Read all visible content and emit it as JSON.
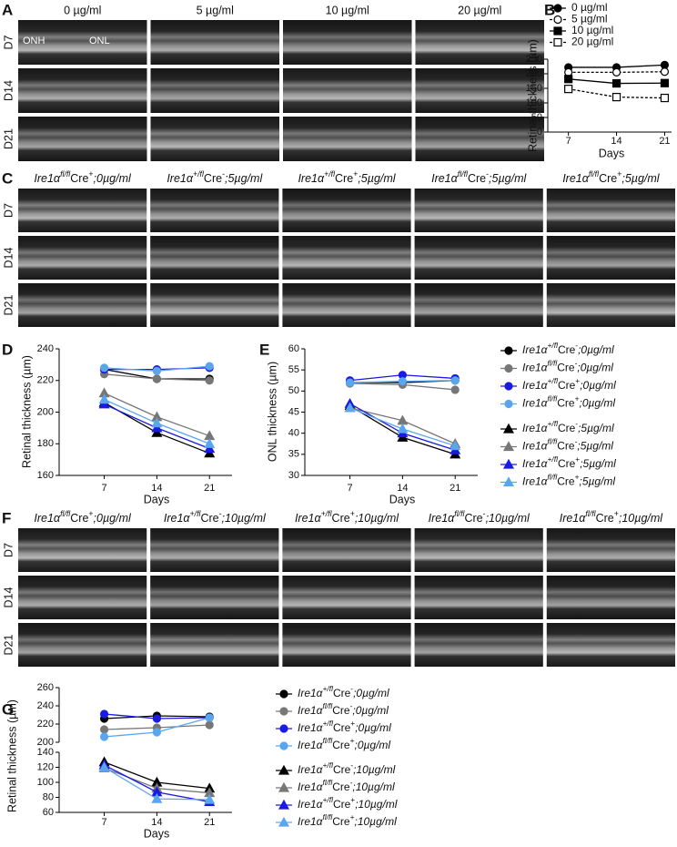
{
  "image_panels": [
    {
      "letter": "A",
      "columns": [
        "0 µg/ml",
        "5 µg/ml",
        "10 µg/ml",
        "20 µg/ml"
      ],
      "rows": [
        "D7",
        "D14",
        "D21"
      ],
      "annotations": [
        "ONH",
        "ONL"
      ]
    },
    {
      "letter": "C",
      "columns": [
        "Ire1αfl/flCre+;0µg/ml",
        "Ire1α+/flCre-;5µg/ml",
        "Ire1α+/flCre+;5µg/ml",
        "Ire1αfl/flCre-;5µg/ml",
        "Ire1αfl/flCre+;5µg/ml"
      ],
      "rows": [
        "D7",
        "D14",
        "D21"
      ]
    },
    {
      "letter": "F",
      "columns": [
        "Ire1αfl/flCre+;0µg/ml",
        "Ire1α+/flCre-;10µg/ml",
        "Ire1α+/flCre+;10µg/ml",
        "Ire1αfl/flCre-;10µg/ml",
        "Ire1αfl/flCre+;10µg/ml"
      ],
      "rows": [
        "D7",
        "D14",
        "D21"
      ]
    }
  ],
  "chart_data": [
    {
      "type": "line",
      "panel": "B",
      "ylabel": "Retinal thickness (µm)",
      "xlabel": "Days",
      "x": [
        7,
        14,
        21
      ],
      "xlim": [
        4,
        22
      ],
      "xticks": [
        7,
        14,
        21
      ],
      "ylim": [
        0,
        250
      ],
      "yticks": [
        0,
        50,
        100,
        150,
        200,
        250
      ],
      "series": [
        {
          "name": "0 µg/ml",
          "color": "#000000",
          "marker": "circle",
          "dash": false,
          "values": [
            222,
            222,
            230
          ]
        },
        {
          "name": "5 µg/ml",
          "color": "#000000",
          "marker": "circle-open",
          "dash": true,
          "values": [
            205,
            205,
            207
          ]
        },
        {
          "name": "10 µg/ml",
          "color": "#000000",
          "marker": "square",
          "dash": false,
          "values": [
            182,
            167,
            168
          ]
        },
        {
          "name": "20 µg/ml",
          "color": "#000000",
          "marker": "square-open",
          "dash": true,
          "values": [
            148,
            120,
            117
          ]
        }
      ]
    },
    {
      "type": "line",
      "panel": "D",
      "ylabel": "Retinal thickness (µm)",
      "xlabel": "Days",
      "x": [
        7,
        14,
        21
      ],
      "xlim": [
        1,
        24
      ],
      "xticks": [
        7,
        14,
        21
      ],
      "ylim": [
        160,
        240
      ],
      "yticks": [
        160,
        180,
        200,
        220,
        240
      ],
      "series": [
        {
          "color": "#000000",
          "marker": "circle",
          "values": [
            227,
            221,
            221
          ]
        },
        {
          "color": "#777777",
          "marker": "circle",
          "values": [
            224,
            221,
            220
          ]
        },
        {
          "color": "#1a1ae0",
          "marker": "circle",
          "values": [
            227,
            227,
            228
          ]
        },
        {
          "color": "#5aa6ee",
          "marker": "circle",
          "values": [
            228,
            226,
            229
          ]
        },
        {
          "color": "#000000",
          "marker": "triangle",
          "values": [
            206,
            187,
            174
          ]
        },
        {
          "color": "#777777",
          "marker": "triangle",
          "values": [
            212,
            197,
            185
          ]
        },
        {
          "color": "#1a1ae0",
          "marker": "triangle",
          "values": [
            205,
            190,
            177
          ]
        },
        {
          "color": "#5aa6ee",
          "marker": "triangle",
          "values": [
            208,
            193,
            180
          ]
        }
      ]
    },
    {
      "type": "line",
      "panel": "E",
      "ylabel": "ONL thickness (µm)",
      "xlabel": "Days",
      "x": [
        7,
        14,
        21
      ],
      "xlim": [
        1,
        24
      ],
      "xticks": [
        7,
        14,
        21
      ],
      "ylim": [
        30,
        60
      ],
      "yticks": [
        30,
        35,
        40,
        45,
        50,
        55,
        60
      ],
      "series": [
        {
          "name": "Ire1α+/flCre-;0µg/ml",
          "color": "#000000",
          "marker": "circle",
          "values": [
            52,
            52,
            52.5
          ]
        },
        {
          "name": "Ire1αfl/flCre-;0µg/ml",
          "color": "#777777",
          "marker": "circle",
          "values": [
            51.8,
            51.5,
            50.3
          ]
        },
        {
          "name": "Ire1α+/flCre+;0µg/ml",
          "color": "#1a1ae0",
          "marker": "circle",
          "values": [
            52.5,
            53.8,
            53
          ]
        },
        {
          "name": "Ire1αfl/flCre+;0µg/ml",
          "color": "#5aa6ee",
          "marker": "circle",
          "values": [
            52,
            52.3,
            52.5
          ]
        },
        {
          "name": "Ire1α+/flCre-;5µg/ml",
          "color": "#000000",
          "marker": "triangle",
          "values": [
            46.5,
            39,
            35
          ]
        },
        {
          "name": "Ire1αfl/flCre-;5µg/ml",
          "color": "#777777",
          "marker": "triangle",
          "values": [
            46,
            43,
            37.5
          ]
        },
        {
          "name": "Ire1α+/flCre+;5µg/ml",
          "color": "#1a1ae0",
          "marker": "triangle",
          "values": [
            47,
            40,
            36
          ]
        },
        {
          "name": "Ire1αfl/flCre+;5µg/ml",
          "color": "#5aa6ee",
          "marker": "triangle",
          "values": [
            46,
            41,
            37
          ]
        }
      ]
    },
    {
      "type": "line",
      "panel": "G",
      "ylabel": "Retinal thickness (µm)",
      "xlabel": "Days",
      "x": [
        7,
        14,
        21
      ],
      "xlim": [
        1,
        24
      ],
      "xticks": [
        7,
        14,
        21
      ],
      "ylim": [
        60,
        260
      ],
      "ybreak": [
        140,
        200
      ],
      "yticks": [
        60,
        80,
        100,
        120,
        140,
        200,
        220,
        240,
        260
      ],
      "series": [
        {
          "name": "Ire1α+/flCre-;0µg/ml",
          "color": "#000000",
          "marker": "circle",
          "values": [
            226,
            229,
            228
          ]
        },
        {
          "name": "Ire1αfl/flCre-;0µg/ml",
          "color": "#777777",
          "marker": "circle",
          "values": [
            214,
            216,
            219
          ]
        },
        {
          "name": "Ire1α+/flCre+;0µg/ml",
          "color": "#1a1ae0",
          "marker": "circle",
          "values": [
            231,
            226,
            227
          ]
        },
        {
          "name": "Ire1αfl/flCre+;0µg/ml",
          "color": "#5aa6ee",
          "marker": "circle",
          "values": [
            206,
            211,
            227
          ]
        },
        {
          "name": "Ire1α+/flCre-;10µg/ml",
          "color": "#000000",
          "marker": "triangle",
          "values": [
            127,
            100,
            92
          ]
        },
        {
          "name": "Ire1αfl/flCre-;10µg/ml",
          "color": "#777777",
          "marker": "triangle",
          "values": [
            119,
            92,
            86
          ]
        },
        {
          "name": "Ire1α+/flCre+;10µg/ml",
          "color": "#1a1ae0",
          "marker": "triangle",
          "values": [
            123,
            87,
            74
          ]
        },
        {
          "name": "Ire1αfl/flCre+;10µg/ml",
          "color": "#5aa6ee",
          "marker": "triangle",
          "values": [
            120,
            78,
            77
          ]
        }
      ]
    }
  ]
}
